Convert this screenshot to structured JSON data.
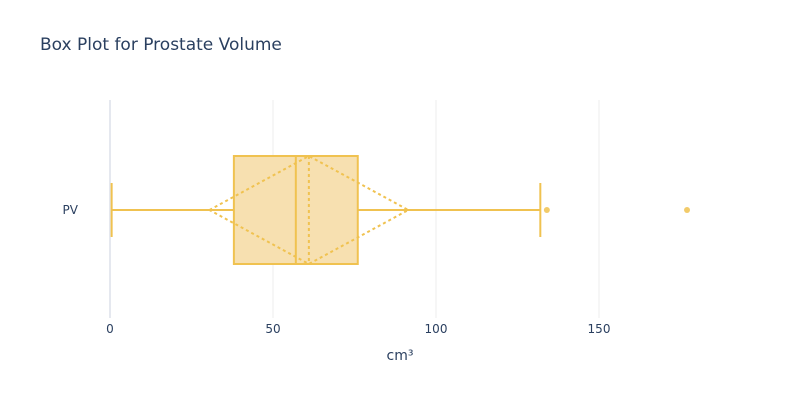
{
  "chart_data": {
    "type": "box",
    "title": "Box Plot for Prostate Volume",
    "xlabel": "cm³",
    "ylabel": "",
    "orientation": "horizontal",
    "categories": [
      "PV"
    ],
    "xlim": [
      -3,
      200
    ],
    "xticks": [
      0,
      50,
      100,
      150
    ],
    "xtick_labels": [
      "0",
      "50",
      "100",
      "150"
    ],
    "grid": true,
    "series": [
      {
        "category": "PV",
        "lower_fence": 0.5,
        "q1": 38,
        "median": 57,
        "q3": 76,
        "upper_fence": 132,
        "mean": 61,
        "sd": 30.5,
        "outliers": [
          134,
          177
        ]
      }
    ],
    "colors": {
      "box_fill": "#f7e0b0",
      "box_line": "#f0c250",
      "outlier": "#f0c250",
      "grid": "#eeeeee",
      "text": "#2a3f5f"
    }
  }
}
